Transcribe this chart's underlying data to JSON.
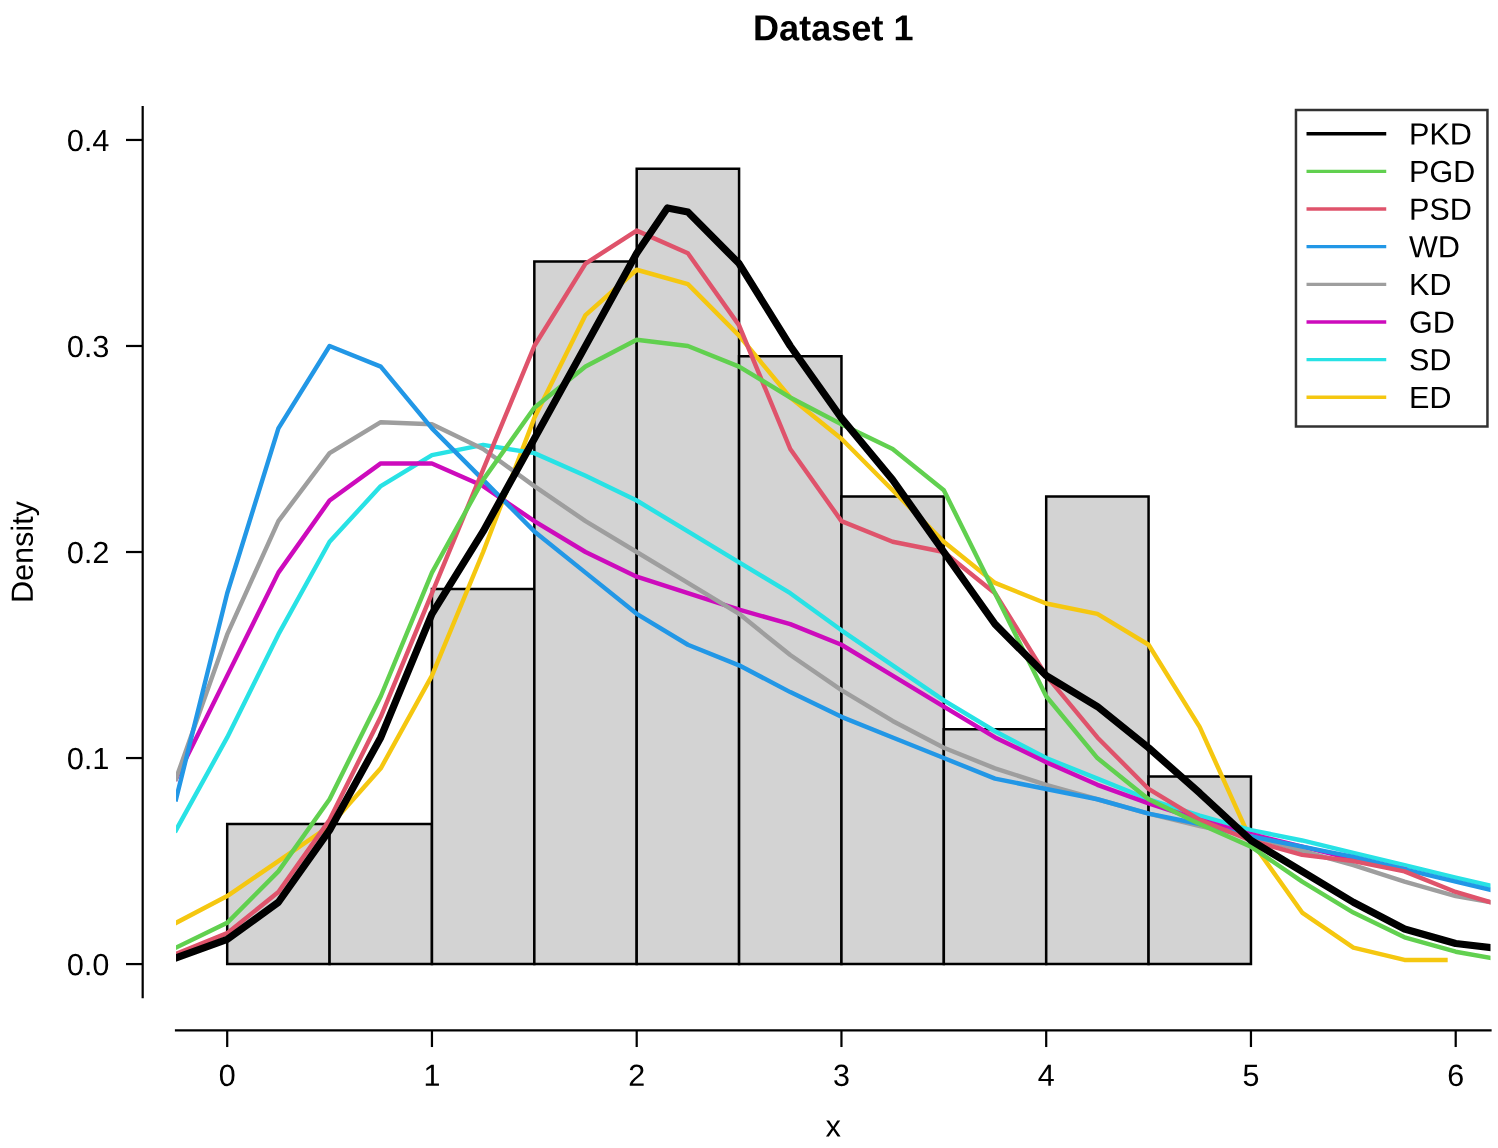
{
  "chart_data": {
    "type": "histogram",
    "title": "Dataset 1",
    "xlabel": "x",
    "ylabel": "Density",
    "bins": [
      0,
      0.5,
      1,
      1.5,
      2,
      2.5,
      3,
      3.5,
      4,
      4.5,
      5
    ],
    "values": [
      0.068,
      0.068,
      0.182,
      0.341,
      0.386,
      0.295,
      0.227,
      0.114,
      0.227,
      0.091
    ],
    "color": "#d3d3d3",
    "xlim": [
      -0.25,
      6.17
    ],
    "ylim": [
      -0.016,
      0.416
    ],
    "xticks": [
      0,
      1,
      2,
      3,
      4,
      5,
      6
    ],
    "yticks": [
      {
        "value": 0,
        "label": "0.0"
      },
      0.1,
      0.2,
      0.3,
      0.4
    ],
    "legend": "top right",
    "grid": false,
    "series": [
      {
        "name": "PKD",
        "type": "line",
        "color": "#000000",
        "x": [
          -0.25,
          0,
          0.25,
          0.5,
          0.75,
          1,
          1.25,
          1.5,
          1.75,
          2,
          2.15,
          2.25,
          2.5,
          2.75,
          3,
          3.25,
          3.5,
          3.75,
          4,
          4.25,
          4.5,
          4.75,
          5,
          5.25,
          5.5,
          5.75,
          6,
          6.17
        ],
        "values": [
          0.003,
          0.012,
          0.03,
          0.065,
          0.11,
          0.17,
          0.21,
          0.255,
          0.3,
          0.345,
          0.367,
          0.365,
          0.34,
          0.3,
          0.265,
          0.235,
          0.2,
          0.165,
          0.14,
          0.125,
          0.105,
          0.083,
          0.06,
          0.045,
          0.03,
          0.017,
          0.01,
          0.008
        ]
      },
      {
        "name": "PGD",
        "type": "line",
        "color": "#61d04f",
        "x": [
          -0.25,
          0,
          0.25,
          0.5,
          0.75,
          1,
          1.25,
          1.5,
          1.75,
          2,
          2.25,
          2.5,
          2.75,
          3,
          3.25,
          3.5,
          3.75,
          4,
          4.25,
          4.5,
          4.75,
          5,
          5.25,
          5.5,
          5.75,
          6,
          6.17
        ],
        "values": [
          0.008,
          0.02,
          0.045,
          0.08,
          0.13,
          0.19,
          0.235,
          0.27,
          0.29,
          0.303,
          0.3,
          0.29,
          0.275,
          0.262,
          0.25,
          0.23,
          0.18,
          0.13,
          0.1,
          0.08,
          0.068,
          0.057,
          0.04,
          0.025,
          0.013,
          0.006,
          0.003
        ]
      },
      {
        "name": "PSD",
        "type": "line",
        "color": "#df536b",
        "x": [
          -0.25,
          0,
          0.25,
          0.5,
          0.75,
          1,
          1.25,
          1.5,
          1.75,
          2,
          2.25,
          2.5,
          2.75,
          3,
          3.25,
          3.5,
          3.75,
          4,
          4.25,
          4.5,
          4.75,
          5,
          5.25,
          5.5,
          5.75,
          6,
          6.17
        ],
        "values": [
          0.005,
          0.015,
          0.035,
          0.07,
          0.12,
          0.18,
          0.24,
          0.3,
          0.34,
          0.356,
          0.345,
          0.31,
          0.25,
          0.215,
          0.205,
          0.2,
          0.18,
          0.14,
          0.11,
          0.085,
          0.07,
          0.06,
          0.053,
          0.05,
          0.045,
          0.035,
          0.03
        ]
      },
      {
        "name": "WD",
        "type": "line",
        "color": "#2297e6",
        "x": [
          -0.25,
          0,
          0.25,
          0.5,
          0.75,
          1,
          1.25,
          1.5,
          1.75,
          2,
          2.25,
          2.5,
          2.75,
          3,
          3.25,
          3.5,
          3.75,
          4,
          4.25,
          4.5,
          4.75,
          5,
          5.25,
          5.5,
          5.75,
          6,
          6.17
        ],
        "values": [
          0.08,
          0.18,
          0.26,
          0.3,
          0.29,
          0.26,
          0.235,
          0.21,
          0.19,
          0.17,
          0.155,
          0.145,
          0.132,
          0.12,
          0.11,
          0.1,
          0.09,
          0.085,
          0.08,
          0.073,
          0.068,
          0.062,
          0.057,
          0.052,
          0.046,
          0.04,
          0.036
        ]
      },
      {
        "name": "KD",
        "type": "line",
        "color": "#9e9e9e",
        "x": [
          -0.25,
          0,
          0.25,
          0.5,
          0.75,
          1,
          1.25,
          1.5,
          1.75,
          2,
          2.25,
          2.5,
          2.75,
          3,
          3.25,
          3.5,
          3.75,
          4,
          4.25,
          4.5,
          4.75,
          5,
          5.25,
          5.5,
          5.75,
          6,
          6.17
        ],
        "values": [
          0.09,
          0.16,
          0.215,
          0.248,
          0.263,
          0.262,
          0.25,
          0.232,
          0.215,
          0.2,
          0.185,
          0.17,
          0.15,
          0.133,
          0.118,
          0.105,
          0.095,
          0.087,
          0.08,
          0.073,
          0.067,
          0.062,
          0.055,
          0.048,
          0.04,
          0.033,
          0.03
        ]
      },
      {
        "name": "GD",
        "type": "line",
        "color": "#cd0bbc",
        "x": [
          -0.25,
          0,
          0.25,
          0.5,
          0.75,
          1,
          1.25,
          1.5,
          1.75,
          2,
          2.25,
          2.5,
          2.75,
          3,
          3.25,
          3.5,
          3.75,
          4,
          4.25,
          4.5,
          4.75,
          5,
          5.25,
          5.5,
          5.75
        ],
        "values": [
          0.09,
          0.14,
          0.19,
          0.225,
          0.243,
          0.243,
          0.232,
          0.215,
          0.2,
          0.188,
          0.18,
          0.172,
          0.165,
          0.155,
          0.14,
          0.125,
          0.11,
          0.098,
          0.087,
          0.078,
          0.07,
          0.063,
          0.057,
          0.051,
          0.046
        ]
      },
      {
        "name": "SD",
        "type": "line",
        "color": "#28e2e5",
        "x": [
          -0.25,
          0,
          0.25,
          0.5,
          0.75,
          1,
          1.25,
          1.5,
          1.75,
          2,
          2.25,
          2.5,
          2.75,
          3,
          3.25,
          3.5,
          3.75,
          4,
          4.25,
          4.5,
          4.75,
          5,
          5.25,
          5.5,
          5.75,
          6,
          6.17
        ],
        "values": [
          0.065,
          0.11,
          0.16,
          0.205,
          0.232,
          0.247,
          0.252,
          0.248,
          0.237,
          0.225,
          0.21,
          0.195,
          0.18,
          0.162,
          0.145,
          0.128,
          0.113,
          0.1,
          0.09,
          0.08,
          0.072,
          0.065,
          0.06,
          0.054,
          0.048,
          0.042,
          0.038
        ]
      },
      {
        "name": "ED",
        "type": "line",
        "color": "#f5c710",
        "x": [
          -0.25,
          0,
          0.25,
          0.5,
          0.75,
          1,
          1.25,
          1.5,
          1.75,
          2,
          2.25,
          2.5,
          2.75,
          3,
          3.25,
          3.5,
          3.75,
          4,
          4.25,
          4.5,
          4.75,
          5,
          5.25,
          5.5,
          5.75,
          5.95
        ],
        "values": [
          0.02,
          0.033,
          0.05,
          0.067,
          0.095,
          0.14,
          0.2,
          0.265,
          0.315,
          0.337,
          0.33,
          0.305,
          0.275,
          0.255,
          0.23,
          0.205,
          0.185,
          0.175,
          0.17,
          0.155,
          0.115,
          0.06,
          0.025,
          0.008,
          0.002,
          0.002
        ]
      }
    ]
  }
}
